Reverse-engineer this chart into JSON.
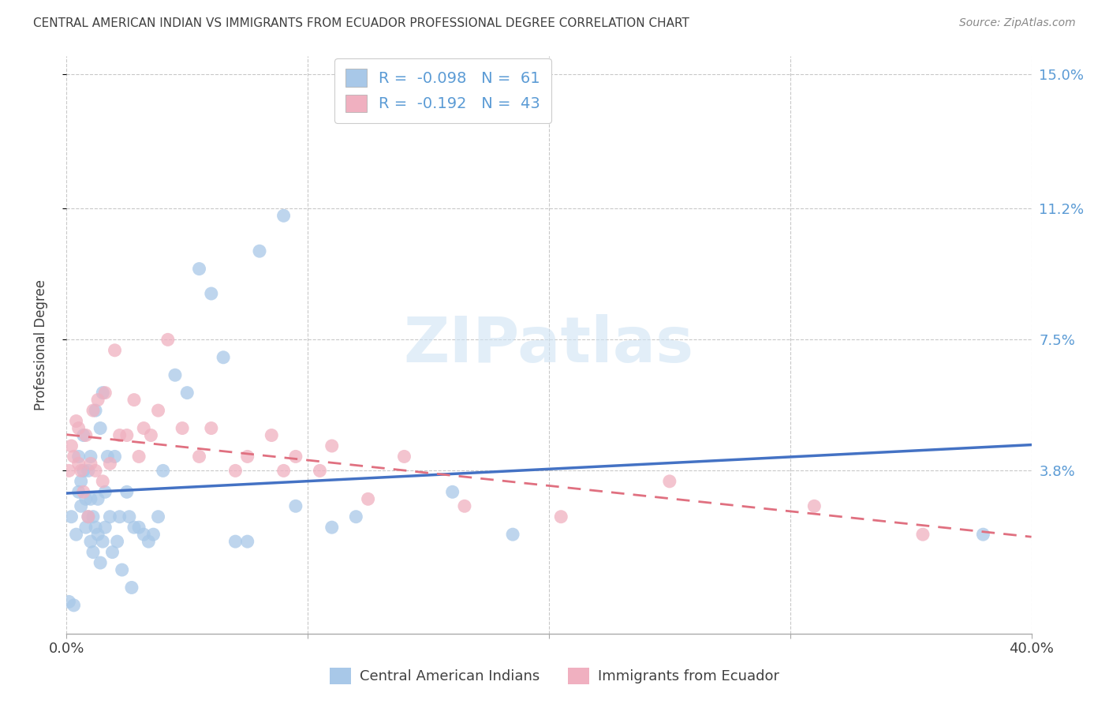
{
  "title": "CENTRAL AMERICAN INDIAN VS IMMIGRANTS FROM ECUADOR PROFESSIONAL DEGREE CORRELATION CHART",
  "source": "Source: ZipAtlas.com",
  "ylabel": "Professional Degree",
  "xlim": [
    0.0,
    0.4
  ],
  "ylim": [
    -0.008,
    0.155
  ],
  "yticks": [
    0.038,
    0.075,
    0.112,
    0.15
  ],
  "ytick_labels": [
    "3.8%",
    "7.5%",
    "11.2%",
    "15.0%"
  ],
  "xticks": [
    0.0,
    0.1,
    0.2,
    0.3,
    0.4
  ],
  "xtick_labels": [
    "0.0%",
    "",
    "",
    "",
    "40.0%"
  ],
  "legend1_label": "R =  -0.098   N =  61",
  "legend2_label": "R =  -0.192   N =  43",
  "legend_label1": "Central American Indians",
  "legend_label2": "Immigrants from Ecuador",
  "color_blue": "#A8C8E8",
  "color_pink": "#F0B0C0",
  "color_blue_line": "#4472C4",
  "color_pink_line": "#E07080",
  "color_title": "#404040",
  "color_axis_right": "#5B9BD5",
  "background": "#FFFFFF",
  "watermark": "ZIPatlas",
  "blue_x": [
    0.001,
    0.002,
    0.003,
    0.004,
    0.005,
    0.005,
    0.006,
    0.006,
    0.007,
    0.007,
    0.008,
    0.008,
    0.009,
    0.009,
    0.01,
    0.01,
    0.01,
    0.011,
    0.011,
    0.012,
    0.012,
    0.013,
    0.013,
    0.014,
    0.014,
    0.015,
    0.015,
    0.016,
    0.016,
    0.017,
    0.018,
    0.019,
    0.02,
    0.021,
    0.022,
    0.023,
    0.025,
    0.026,
    0.027,
    0.028,
    0.03,
    0.032,
    0.034,
    0.036,
    0.038,
    0.04,
    0.045,
    0.05,
    0.055,
    0.06,
    0.065,
    0.07,
    0.075,
    0.08,
    0.09,
    0.095,
    0.11,
    0.12,
    0.16,
    0.185,
    0.38
  ],
  "blue_y": [
    0.001,
    0.025,
    0.0,
    0.02,
    0.032,
    0.042,
    0.028,
    0.035,
    0.038,
    0.048,
    0.03,
    0.022,
    0.038,
    0.025,
    0.042,
    0.03,
    0.018,
    0.025,
    0.015,
    0.022,
    0.055,
    0.02,
    0.03,
    0.05,
    0.012,
    0.018,
    0.06,
    0.022,
    0.032,
    0.042,
    0.025,
    0.015,
    0.042,
    0.018,
    0.025,
    0.01,
    0.032,
    0.025,
    0.005,
    0.022,
    0.022,
    0.02,
    0.018,
    0.02,
    0.025,
    0.038,
    0.065,
    0.06,
    0.095,
    0.088,
    0.07,
    0.018,
    0.018,
    0.1,
    0.11,
    0.028,
    0.022,
    0.025,
    0.032,
    0.02,
    0.02
  ],
  "pink_x": [
    0.001,
    0.002,
    0.003,
    0.004,
    0.005,
    0.005,
    0.006,
    0.007,
    0.008,
    0.009,
    0.01,
    0.011,
    0.012,
    0.013,
    0.015,
    0.016,
    0.018,
    0.02,
    0.022,
    0.025,
    0.028,
    0.03,
    0.032,
    0.035,
    0.038,
    0.042,
    0.048,
    0.055,
    0.06,
    0.07,
    0.075,
    0.085,
    0.09,
    0.095,
    0.105,
    0.11,
    0.125,
    0.14,
    0.165,
    0.205,
    0.25,
    0.31,
    0.355
  ],
  "pink_y": [
    0.038,
    0.045,
    0.042,
    0.052,
    0.04,
    0.05,
    0.038,
    0.032,
    0.048,
    0.025,
    0.04,
    0.055,
    0.038,
    0.058,
    0.035,
    0.06,
    0.04,
    0.072,
    0.048,
    0.048,
    0.058,
    0.042,
    0.05,
    0.048,
    0.055,
    0.075,
    0.05,
    0.042,
    0.05,
    0.038,
    0.042,
    0.048,
    0.038,
    0.042,
    0.038,
    0.045,
    0.03,
    0.042,
    0.028,
    0.025,
    0.035,
    0.028,
    0.02
  ]
}
